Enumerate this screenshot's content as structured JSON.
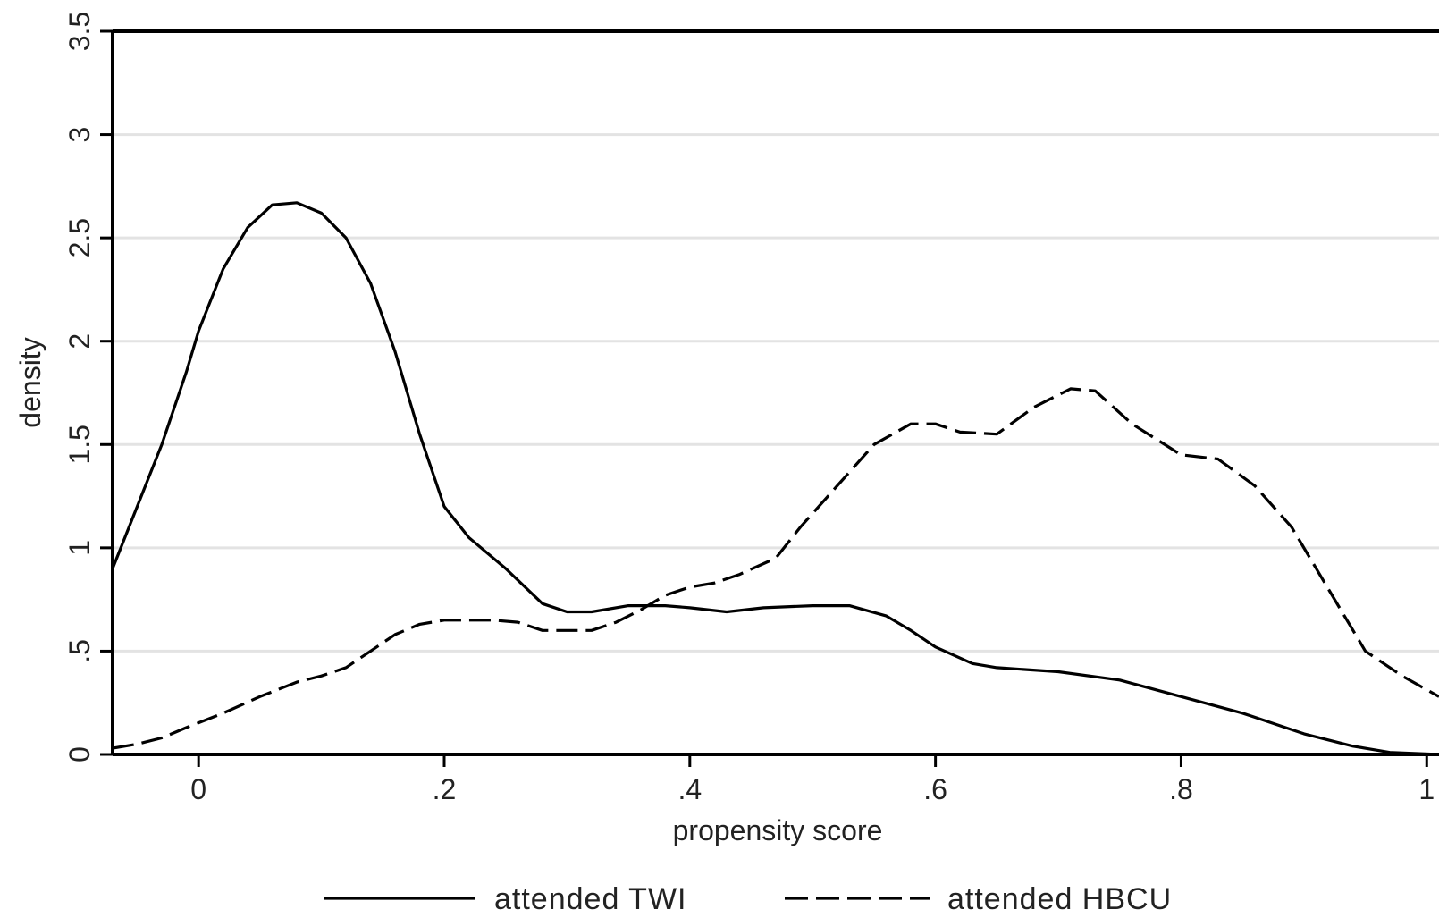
{
  "chart_data": {
    "type": "line",
    "xlabel": "propensity score",
    "ylabel": "density",
    "xlim": [
      -0.07,
      1.01
    ],
    "ylim": [
      0,
      3.5
    ],
    "x_ticks": [
      0,
      0.2,
      0.4,
      0.6,
      0.8,
      1
    ],
    "x_tick_labels": [
      "0",
      ".2",
      ".4",
      ".6",
      ".8",
      "1"
    ],
    "y_ticks": [
      0,
      0.5,
      1,
      1.5,
      2,
      2.5,
      3,
      3.5
    ],
    "y_tick_labels": [
      "0",
      ".5",
      "1",
      "1.5",
      "2",
      "2.5",
      "3",
      "3.5"
    ],
    "grid": true,
    "legend_position": "bottom",
    "series": [
      {
        "name": "attended TWI",
        "style": "solid",
        "color": "#000000",
        "points": [
          [
            -0.07,
            0.9
          ],
          [
            -0.05,
            1.2
          ],
          [
            -0.03,
            1.5
          ],
          [
            -0.01,
            1.85
          ],
          [
            0.0,
            2.05
          ],
          [
            0.02,
            2.35
          ],
          [
            0.04,
            2.55
          ],
          [
            0.06,
            2.66
          ],
          [
            0.08,
            2.67
          ],
          [
            0.1,
            2.62
          ],
          [
            0.12,
            2.5
          ],
          [
            0.14,
            2.28
          ],
          [
            0.16,
            1.95
          ],
          [
            0.18,
            1.55
          ],
          [
            0.2,
            1.2
          ],
          [
            0.22,
            1.05
          ],
          [
            0.25,
            0.9
          ],
          [
            0.28,
            0.73
          ],
          [
            0.3,
            0.69
          ],
          [
            0.32,
            0.69
          ],
          [
            0.35,
            0.72
          ],
          [
            0.38,
            0.72
          ],
          [
            0.4,
            0.71
          ],
          [
            0.43,
            0.69
          ],
          [
            0.46,
            0.71
          ],
          [
            0.5,
            0.72
          ],
          [
            0.53,
            0.72
          ],
          [
            0.56,
            0.67
          ],
          [
            0.58,
            0.6
          ],
          [
            0.6,
            0.52
          ],
          [
            0.63,
            0.44
          ],
          [
            0.65,
            0.42
          ],
          [
            0.7,
            0.4
          ],
          [
            0.75,
            0.36
          ],
          [
            0.8,
            0.28
          ],
          [
            0.85,
            0.2
          ],
          [
            0.9,
            0.1
          ],
          [
            0.94,
            0.04
          ],
          [
            0.97,
            0.01
          ],
          [
            1.01,
            0.0
          ]
        ]
      },
      {
        "name": "attended HBCU",
        "style": "dashed",
        "color": "#000000",
        "points": [
          [
            -0.07,
            0.03
          ],
          [
            -0.05,
            0.05
          ],
          [
            -0.03,
            0.08
          ],
          [
            -0.01,
            0.13
          ],
          [
            0.02,
            0.2
          ],
          [
            0.05,
            0.28
          ],
          [
            0.08,
            0.35
          ],
          [
            0.1,
            0.38
          ],
          [
            0.12,
            0.42
          ],
          [
            0.14,
            0.5
          ],
          [
            0.16,
            0.58
          ],
          [
            0.18,
            0.63
          ],
          [
            0.2,
            0.65
          ],
          [
            0.24,
            0.65
          ],
          [
            0.26,
            0.64
          ],
          [
            0.28,
            0.6
          ],
          [
            0.32,
            0.6
          ],
          [
            0.34,
            0.64
          ],
          [
            0.36,
            0.7
          ],
          [
            0.38,
            0.77
          ],
          [
            0.4,
            0.81
          ],
          [
            0.42,
            0.83
          ],
          [
            0.44,
            0.87
          ],
          [
            0.47,
            0.95
          ],
          [
            0.49,
            1.1
          ],
          [
            0.52,
            1.3
          ],
          [
            0.55,
            1.5
          ],
          [
            0.58,
            1.6
          ],
          [
            0.6,
            1.6
          ],
          [
            0.62,
            1.56
          ],
          [
            0.65,
            1.55
          ],
          [
            0.68,
            1.68
          ],
          [
            0.71,
            1.77
          ],
          [
            0.73,
            1.76
          ],
          [
            0.76,
            1.6
          ],
          [
            0.8,
            1.45
          ],
          [
            0.83,
            1.43
          ],
          [
            0.86,
            1.3
          ],
          [
            0.89,
            1.1
          ],
          [
            0.92,
            0.8
          ],
          [
            0.95,
            0.5
          ],
          [
            0.98,
            0.38
          ],
          [
            1.01,
            0.28
          ]
        ]
      }
    ]
  }
}
